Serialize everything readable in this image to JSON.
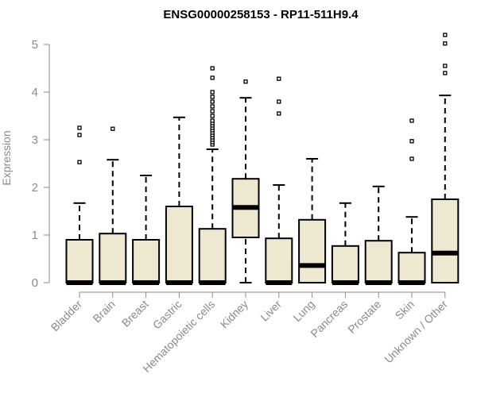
{
  "chart_data": {
    "type": "boxplot",
    "title": "ENSG00000258153 - RP11-511H9.4",
    "ylabel": "Expression",
    "xlabel": "",
    "ylim": [
      0,
      5.3
    ],
    "yticks": [
      0,
      1,
      2,
      3,
      4,
      5
    ],
    "ytick_labels": [
      "0",
      "1",
      "2",
      "3",
      "4",
      "5"
    ],
    "grid": false,
    "legend": "none",
    "box_fill": "#efe8d0",
    "box_stroke": "#000000",
    "categories": [
      "Bladder",
      "Brain",
      "Breast",
      "Gastric",
      "Hematopoietic cells",
      "Kidney",
      "Liver",
      "Lung",
      "Pancreas",
      "Prostate",
      "Skin",
      "Unknown / Other"
    ],
    "boxes": [
      {
        "category": "Bladder",
        "whisker_low": 0,
        "q1": 0,
        "median": 0,
        "q3": 0.9,
        "whisker_high": 1.67,
        "outliers": [
          2.53,
          3.1,
          3.25
        ]
      },
      {
        "category": "Brain",
        "whisker_low": 0,
        "q1": 0,
        "median": 0,
        "q3": 1.03,
        "whisker_high": 2.58,
        "outliers": [
          3.23
        ]
      },
      {
        "category": "Breast",
        "whisker_low": 0,
        "q1": 0,
        "median": 0,
        "q3": 0.9,
        "whisker_high": 2.25,
        "outliers": []
      },
      {
        "category": "Gastric",
        "whisker_low": 0,
        "q1": 0,
        "median": 0,
        "q3": 1.6,
        "whisker_high": 3.47,
        "outliers": []
      },
      {
        "category": "Hematopoietic cells",
        "whisker_low": 0,
        "q1": 0,
        "median": 0,
        "q3": 1.13,
        "whisker_high": 2.8,
        "outliers": [
          2.9,
          2.95,
          3.0,
          3.05,
          3.1,
          3.15,
          3.2,
          3.25,
          3.3,
          3.35,
          3.4,
          3.5,
          3.6,
          3.7,
          3.8,
          3.9,
          4.0,
          4.3,
          4.5
        ]
      },
      {
        "category": "Kidney",
        "whisker_low": 0,
        "q1": 0.95,
        "median": 1.58,
        "q3": 2.18,
        "whisker_high": 3.88,
        "outliers": [
          4.22
        ]
      },
      {
        "category": "Liver",
        "whisker_low": 0,
        "q1": 0,
        "median": 0,
        "q3": 0.93,
        "whisker_high": 2.05,
        "outliers": [
          3.55,
          3.8,
          4.28
        ]
      },
      {
        "category": "Lung",
        "whisker_low": 0,
        "q1": 0,
        "median": 0.36,
        "q3": 1.32,
        "whisker_high": 2.6,
        "outliers": []
      },
      {
        "category": "Pancreas",
        "whisker_low": 0,
        "q1": 0,
        "median": 0,
        "q3": 0.77,
        "whisker_high": 1.67,
        "outliers": []
      },
      {
        "category": "Prostate",
        "whisker_low": 0,
        "q1": 0,
        "median": 0,
        "q3": 0.88,
        "whisker_high": 2.02,
        "outliers": []
      },
      {
        "category": "Skin",
        "whisker_low": 0,
        "q1": 0,
        "median": 0,
        "q3": 0.63,
        "whisker_high": 1.38,
        "outliers": [
          2.6,
          2.97,
          3.4
        ]
      },
      {
        "category": "Unknown / Other",
        "whisker_low": 0,
        "q1": 0,
        "median": 0.62,
        "q3": 1.75,
        "whisker_high": 3.93,
        "outliers": [
          4.4,
          4.55,
          5.02,
          5.2
        ]
      }
    ]
  }
}
